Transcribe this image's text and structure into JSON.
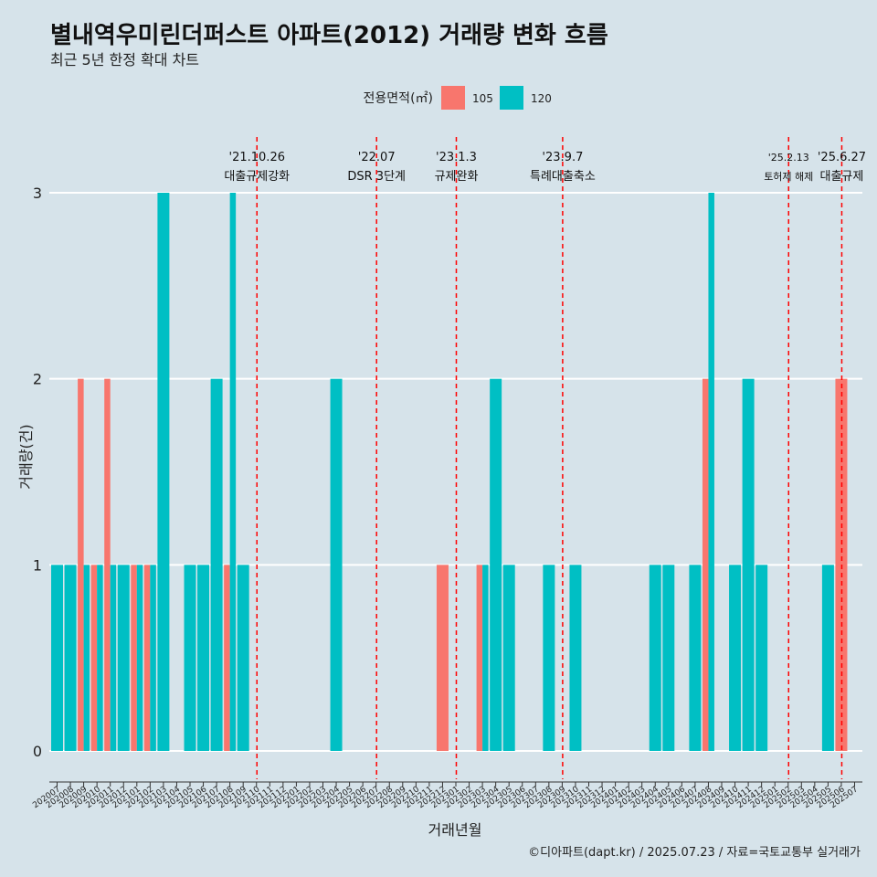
{
  "title": "별내역우미린더퍼스트 아파트(2012) 거래량 변화 흐름",
  "subtitle": "최근 5년 한정 확대 차트",
  "caption": "©디아파트(dapt.kr) / 2025.07.23 / 자료=국토교통부 실거래가",
  "colors": {
    "s105": "#f8766d",
    "s120": "#00bfc4",
    "event": "#ff0000",
    "grid": "#ffffff"
  },
  "chart_data": {
    "type": "bar",
    "xlabel": "거래년월",
    "ylabel": "거래량(건)",
    "ylim": [
      0,
      3
    ],
    "yticks": [
      0,
      1,
      2,
      3
    ],
    "legend_title": "전용면적(㎡)",
    "categories": [
      "202007",
      "202008",
      "202009",
      "202010",
      "202011",
      "202012",
      "202101",
      "202102",
      "202103",
      "202104",
      "202105",
      "202106",
      "202107",
      "202108",
      "202109",
      "202110",
      "202111",
      "202112",
      "202201",
      "202202",
      "202203",
      "202204",
      "202205",
      "202206",
      "202207",
      "202208",
      "202209",
      "202210",
      "202211",
      "202212",
      "202301",
      "202302",
      "202303",
      "202304",
      "202305",
      "202306",
      "202307",
      "202308",
      "202309",
      "202310",
      "202311",
      "202312",
      "202401",
      "202402",
      "202403",
      "202404",
      "202405",
      "202406",
      "202407",
      "202408",
      "202409",
      "202410",
      "202411",
      "202412",
      "202501",
      "202502",
      "202503",
      "202504",
      "202505",
      "202506",
      "202507"
    ],
    "series": [
      {
        "name": "105",
        "values": [
          0,
          0,
          2,
          1,
          2,
          0,
          1,
          1,
          0,
          0,
          0,
          0,
          0,
          1,
          0,
          0,
          0,
          0,
          0,
          0,
          0,
          0,
          0,
          0,
          0,
          0,
          0,
          0,
          0,
          1,
          0,
          0,
          1,
          0,
          0,
          0,
          0,
          0,
          0,
          0,
          0,
          0,
          0,
          0,
          0,
          0,
          0,
          0,
          0,
          2,
          0,
          0,
          0,
          0,
          0,
          0,
          0,
          0,
          0,
          2,
          0
        ]
      },
      {
        "name": "120",
        "values": [
          1,
          1,
          1,
          1,
          1,
          1,
          1,
          1,
          3,
          0,
          1,
          1,
          2,
          3,
          1,
          0,
          0,
          0,
          0,
          0,
          0,
          2,
          0,
          0,
          0,
          0,
          0,
          0,
          0,
          0,
          0,
          0,
          1,
          2,
          1,
          0,
          0,
          1,
          0,
          1,
          0,
          0,
          0,
          0,
          0,
          1,
          1,
          0,
          1,
          3,
          0,
          1,
          2,
          1,
          0,
          0,
          0,
          0,
          1,
          0,
          0
        ]
      }
    ],
    "events": [
      {
        "date": "'21.10.26",
        "label": "대출규제강화",
        "category": "202110"
      },
      {
        "date": "'22.07",
        "label": "DSR 3단계",
        "category": "202207"
      },
      {
        "date": "'23.1.3",
        "label": "규제완화",
        "category": "202301"
      },
      {
        "date": "'23.9.7",
        "label": "특례대출축소",
        "category": "202309"
      },
      {
        "date": "'25.2.13",
        "label": "토허제 해제",
        "category": "202502"
      },
      {
        "date": "'25.6.27",
        "label": "대출규제",
        "category": "202506"
      }
    ]
  }
}
